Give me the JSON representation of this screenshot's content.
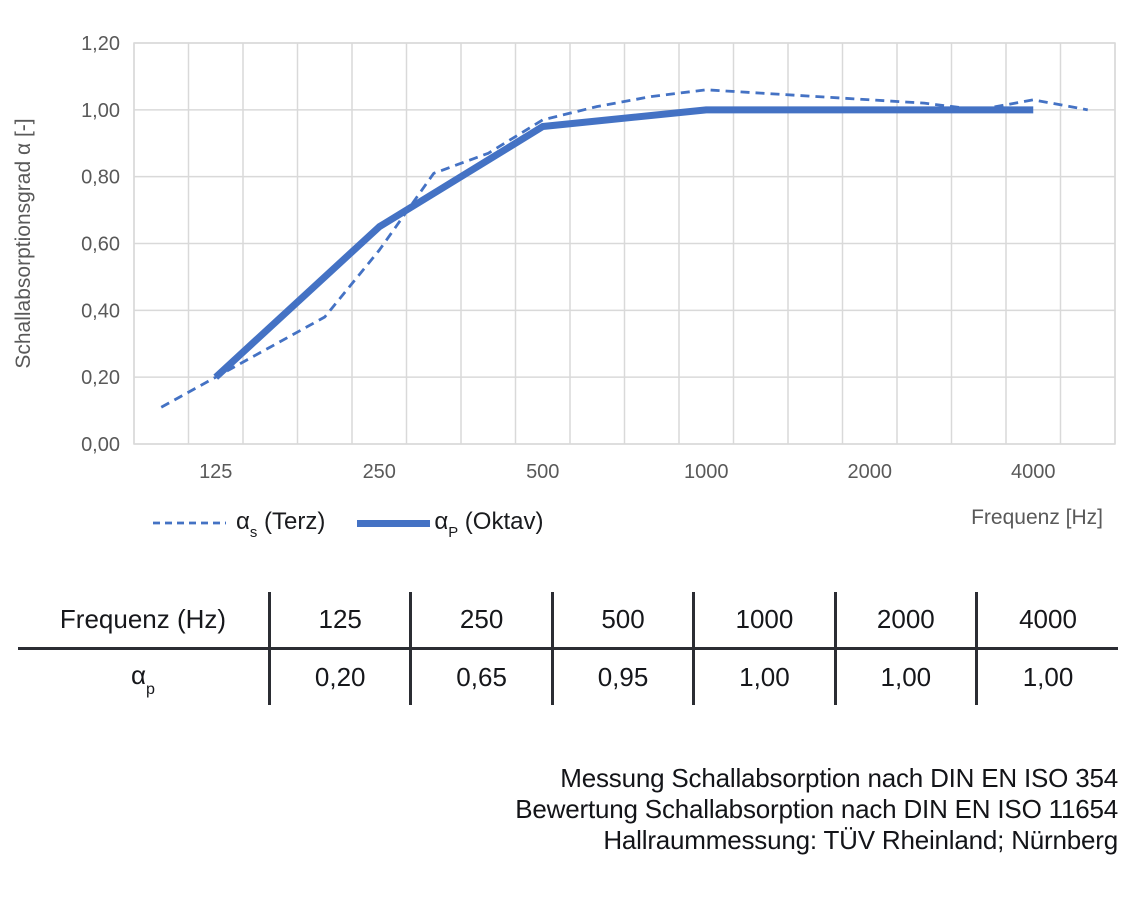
{
  "chart": {
    "ylabel": "Schallabsorptionsgrad α [-]",
    "xlabel": "Frequenz [Hz]",
    "legend": [
      {
        "alpha": "α",
        "sub": "s",
        "rest": " (Terz)"
      },
      {
        "alpha": "α",
        "sub": "P",
        "rest": " (Oktav)"
      }
    ]
  },
  "chart_data": {
    "type": "line",
    "x_categories": [
      100,
      125,
      160,
      200,
      250,
      315,
      400,
      500,
      630,
      800,
      1000,
      1250,
      1600,
      2000,
      2500,
      3150,
      4000,
      5000
    ],
    "x_tick_labels": [
      "125",
      "250",
      "500",
      "1000",
      "2000",
      "4000"
    ],
    "y_ticks": [
      "0,00",
      "0,20",
      "0,40",
      "0,60",
      "0,80",
      "1,00",
      "1,20"
    ],
    "ylim": [
      0,
      1.2
    ],
    "grid": true,
    "legend_position": "bottom-left",
    "title": "",
    "series": [
      {
        "name": "αs (Terz)",
        "style": "dashed",
        "x": [
          100,
          125,
          160,
          200,
          250,
          315,
          400,
          500,
          630,
          800,
          1000,
          1250,
          1600,
          2000,
          2500,
          3150,
          4000,
          5000
        ],
        "values": [
          0.11,
          0.2,
          0.29,
          0.38,
          0.58,
          0.81,
          0.87,
          0.97,
          1.01,
          1.04,
          1.06,
          1.05,
          1.04,
          1.03,
          1.02,
          1.0,
          1.03,
          1.0
        ]
      },
      {
        "name": "αP (Oktav)",
        "style": "solid",
        "x": [
          125,
          250,
          500,
          1000,
          2000,
          4000
        ],
        "values": [
          0.2,
          0.65,
          0.95,
          1.0,
          1.0,
          1.0
        ]
      }
    ],
    "colors": {
      "line": "#4472C4",
      "grid": "#D9D9D9",
      "axis_text": "#595959"
    }
  },
  "table": {
    "headers": [
      "Frequenz (Hz)",
      "125",
      "250",
      "500",
      "1000",
      "2000",
      "4000"
    ],
    "row_label": {
      "alpha": "α",
      "sub": "p"
    },
    "values": [
      "0,20",
      "0,65",
      "0,95",
      "1,00",
      "1,00",
      "1,00"
    ]
  },
  "footer": {
    "lines": [
      "Messung Schallabsorption nach DIN EN ISO 354",
      "Bewertung Schallabsorption nach DIN EN ISO 11654",
      "Hallraummessung: TÜV Rheinland; Nürnberg"
    ]
  }
}
